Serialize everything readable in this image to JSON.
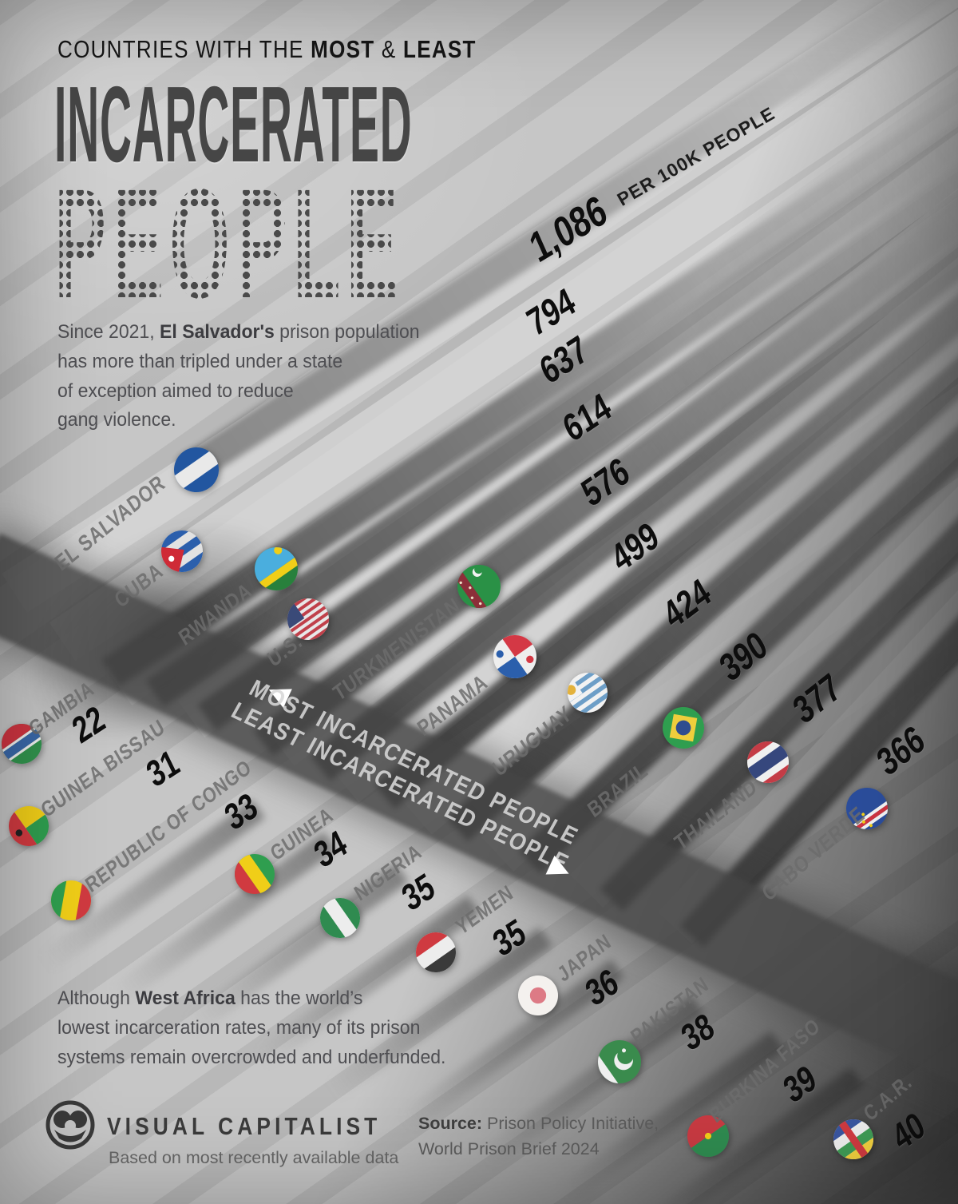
{
  "header": {
    "kicker_pre": "COUNTRIES WITH THE ",
    "kicker_bold1": "MOST",
    "kicker_mid": " & ",
    "kicker_bold2": "LEAST",
    "title_solid": "INCARCERATED",
    "title_dotted": "PEOPLE",
    "axis_label": "PER 100K PEOPLE"
  },
  "notes": {
    "top": {
      "pre": "Since 2021, ",
      "bold": "El Salvador's",
      "line1_rest": " prison population",
      "line2": "has more than tripled under a state",
      "line3": "of exception aimed to reduce",
      "line4": "gang violence."
    },
    "bottom": {
      "pre": "Although ",
      "bold": "West Africa",
      "line1_rest": " has the world’s",
      "line2": "lowest incarceration rates, many of its prison",
      "line3": "systems remain overcrowded and underfunded."
    }
  },
  "divider": {
    "most_label": "MOST INCARCERATED PEOPLE",
    "least_label": "LEAST INCARCERATED PEOPLE"
  },
  "footer": {
    "brand": "VISUAL CAPITALIST",
    "brand_sub": "Based on most recently available data",
    "source_label": "Source:",
    "source_rest": " Prison Policy Initiative,",
    "source_line2": "World Prison Brief 2024"
  },
  "colors": {
    "background": "#c6c6c6",
    "title": "#464646",
    "value_text": "#0d0d0d",
    "country_label": "#6c6c6c",
    "divider_band": "#444444"
  },
  "chart_data": {
    "type": "bar",
    "title": "Countries with the Most & Least Incarcerated People",
    "unit": "incarcerated people per 100k people",
    "legend_position": "middle diagonal divider",
    "most": [
      {
        "country": "EL SALVADOR",
        "value": 1086,
        "display": "1,086",
        "flag": "el-salvador"
      },
      {
        "country": "CUBA",
        "value": 794,
        "display": "794",
        "flag": "cuba"
      },
      {
        "country": "RWANDA",
        "value": 637,
        "display": "637",
        "flag": "rwanda"
      },
      {
        "country": "U.S.",
        "value": 614,
        "display": "614",
        "flag": "us"
      },
      {
        "country": "TURKMENISTAN",
        "value": 576,
        "display": "576",
        "flag": "turkmenistan"
      },
      {
        "country": "PANAMA",
        "value": 499,
        "display": "499",
        "flag": "panama"
      },
      {
        "country": "URUGUAY",
        "value": 424,
        "display": "424",
        "flag": "uruguay"
      },
      {
        "country": "BRAZIL",
        "value": 390,
        "display": "390",
        "flag": "brazil"
      },
      {
        "country": "THAILAND",
        "value": 377,
        "display": "377",
        "flag": "thailand"
      },
      {
        "country": "CABO VERDE",
        "value": 366,
        "display": "366",
        "flag": "cabo-verde"
      }
    ],
    "least": [
      {
        "country": "GAMBIA",
        "value": 22,
        "display": "22",
        "flag": "gambia"
      },
      {
        "country": "GUINEA BISSAU",
        "value": 31,
        "display": "31",
        "flag": "guinea-bissau"
      },
      {
        "country": "REPUBLIC OF CONGO",
        "value": 33,
        "display": "33",
        "flag": "republic-of-congo"
      },
      {
        "country": "GUINEA",
        "value": 34,
        "display": "34",
        "flag": "guinea"
      },
      {
        "country": "NIGERIA",
        "value": 35,
        "display": "35",
        "flag": "nigeria"
      },
      {
        "country": "YEMEN",
        "value": 35,
        "display": "35",
        "flag": "yemen"
      },
      {
        "country": "JAPAN",
        "value": 36,
        "display": "36",
        "flag": "japan"
      },
      {
        "country": "PAKISTAN",
        "value": 38,
        "display": "38",
        "flag": "pakistan"
      },
      {
        "country": "BURKINA FASO",
        "value": 39,
        "display": "39",
        "flag": "burkina-faso"
      },
      {
        "country": "C.A.R.",
        "value": 40,
        "display": "40",
        "flag": "car"
      }
    ]
  }
}
